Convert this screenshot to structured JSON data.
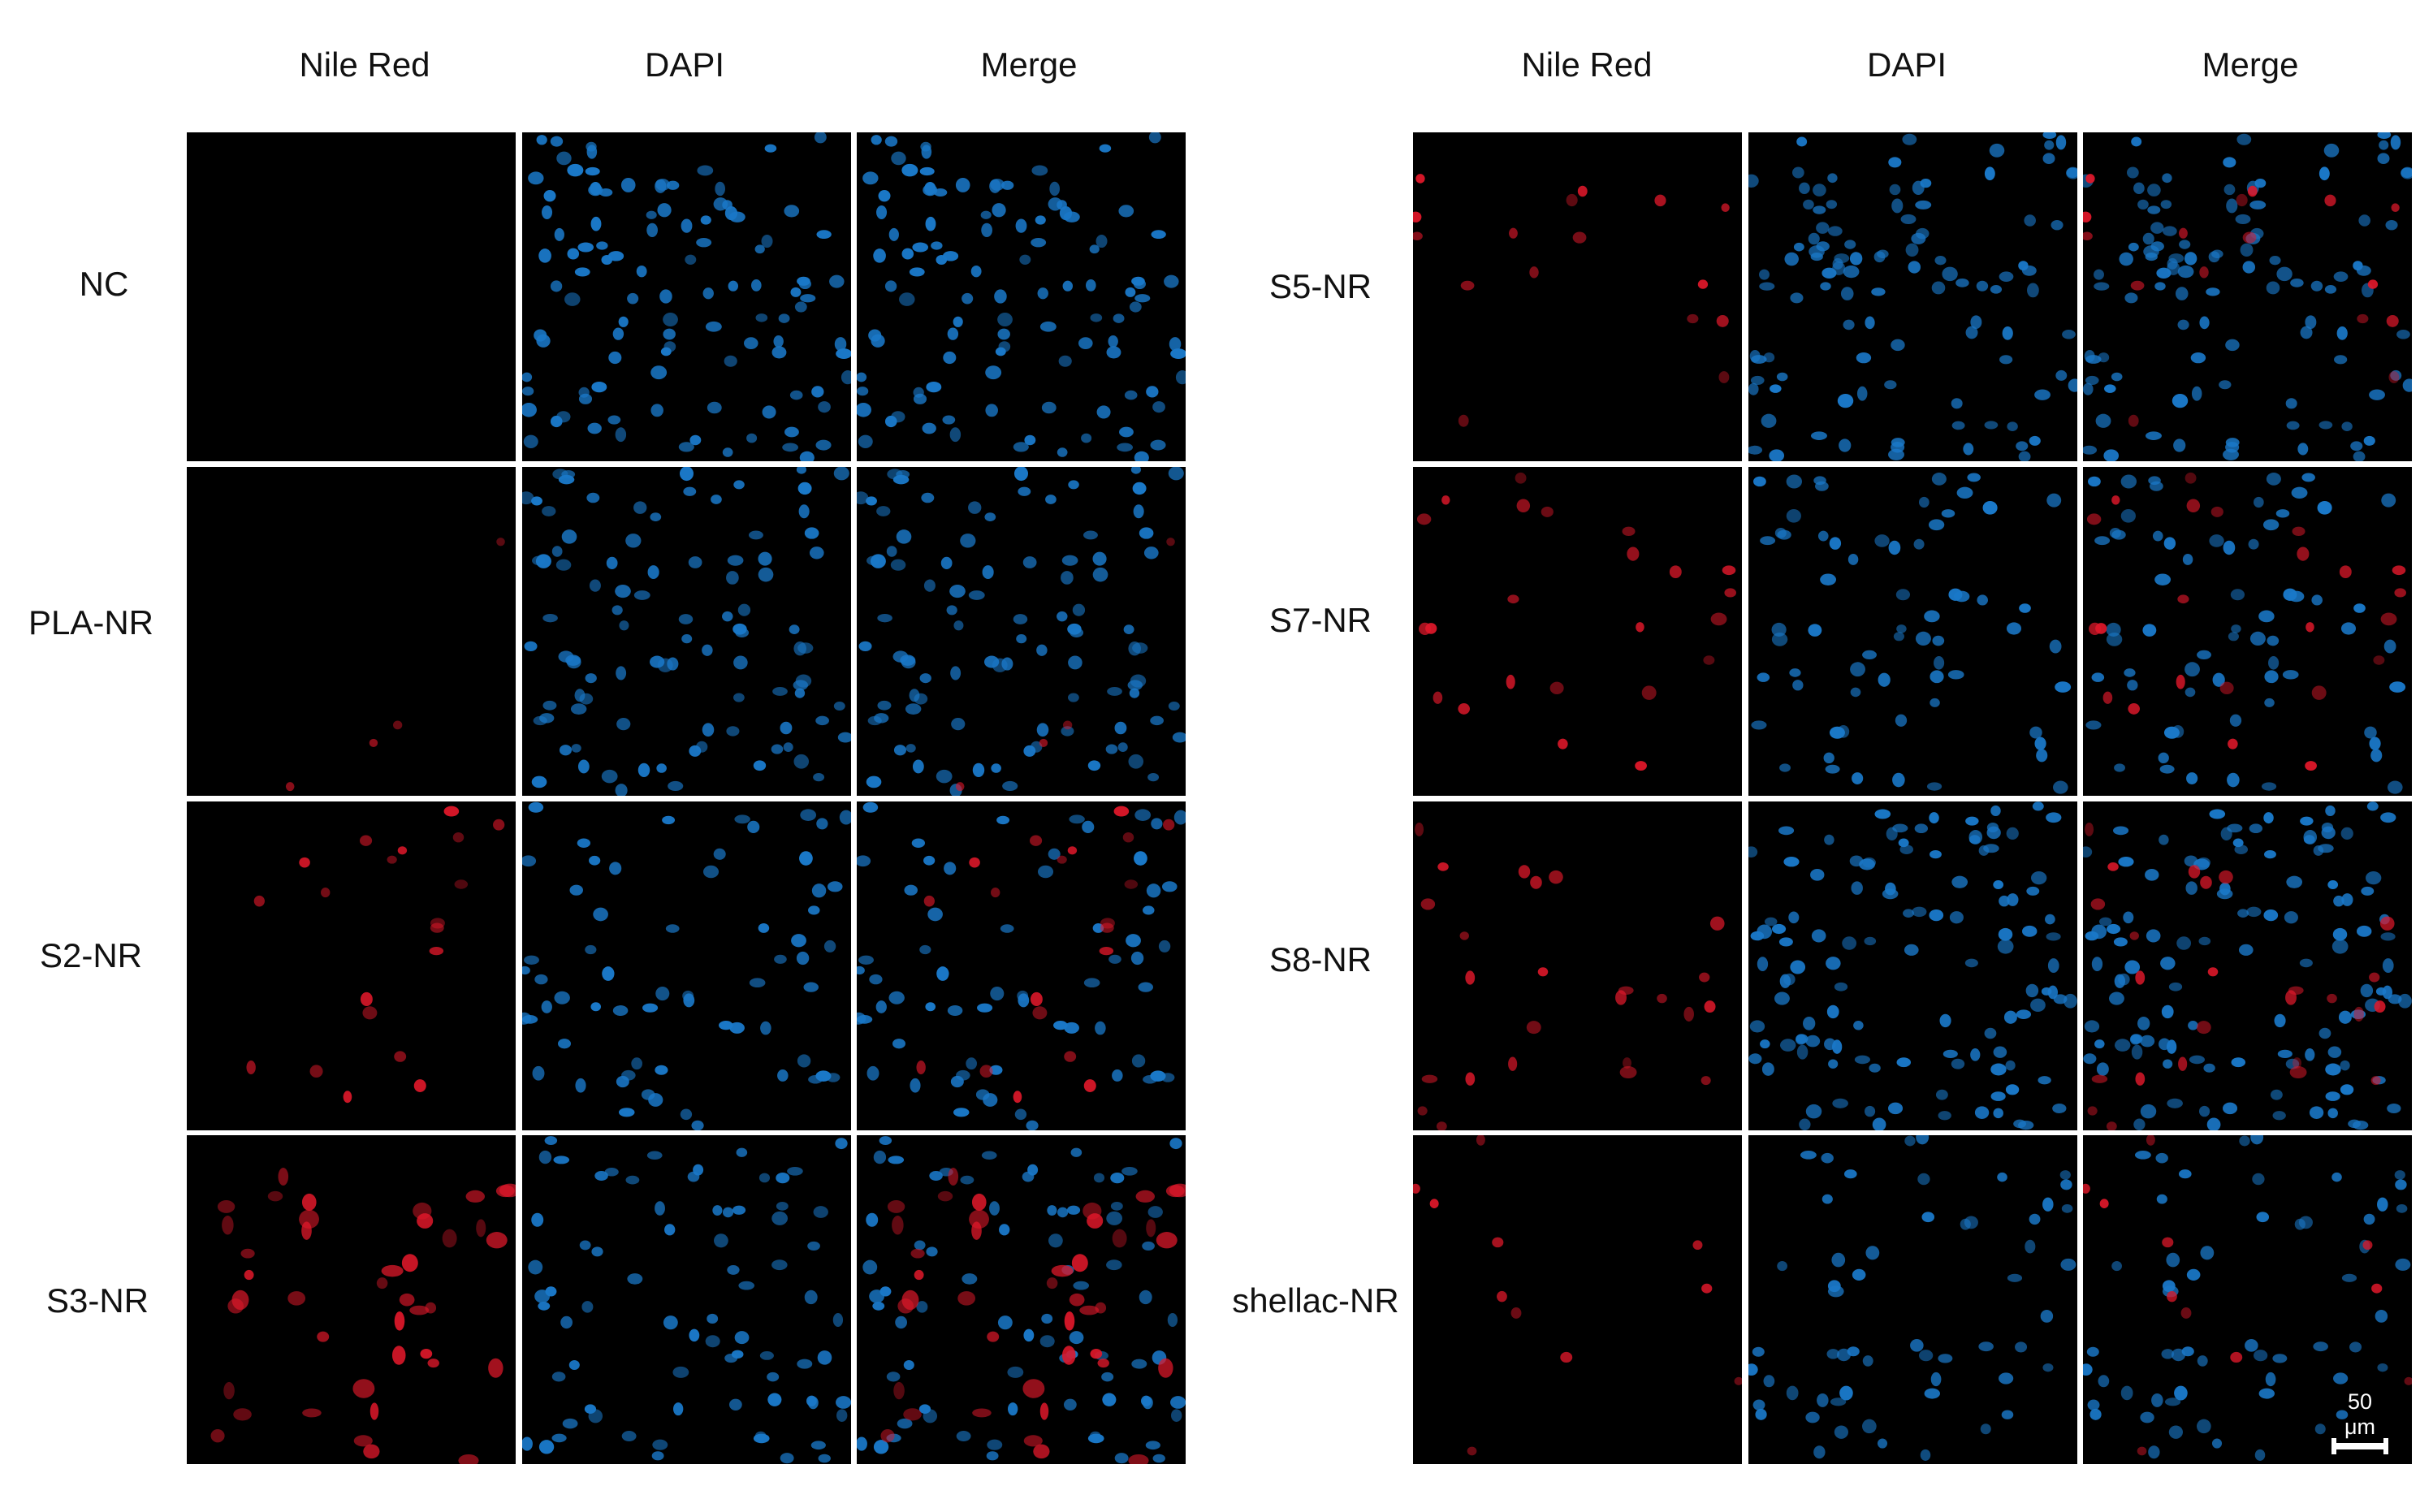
{
  "column_headers": [
    "Nile Red",
    "DAPI",
    "Merge"
  ],
  "left_group": {
    "rows": [
      {
        "label": "NC",
        "nile_red_intensity": 0.0,
        "nuclei_density": 0.9
      },
      {
        "label": "PLA-NR",
        "nile_red_intensity": 0.08,
        "nuclei_density": 0.85
      },
      {
        "label": "S2-NR",
        "nile_red_intensity": 0.45,
        "nuclei_density": 0.55
      },
      {
        "label": "S3-NR",
        "nile_red_intensity": 0.9,
        "nuclei_density": 0.7
      }
    ]
  },
  "right_group": {
    "rows": [
      {
        "label": "S5-NR",
        "nile_red_intensity": 0.35,
        "nuclei_density": 0.85
      },
      {
        "label": "S7-NR",
        "nile_red_intensity": 0.5,
        "nuclei_density": 0.55
      },
      {
        "label": "S8-NR",
        "nile_red_intensity": 0.55,
        "nuclei_density": 0.95
      },
      {
        "label": "shellac-NR",
        "nile_red_intensity": 0.25,
        "nuclei_density": 0.5
      }
    ]
  },
  "scale_bar": {
    "label": "50 μm"
  },
  "colors": {
    "nile_red": "#e0182a",
    "dapi": "#1a78c8",
    "background": "#000000",
    "page": "#ffffff"
  }
}
